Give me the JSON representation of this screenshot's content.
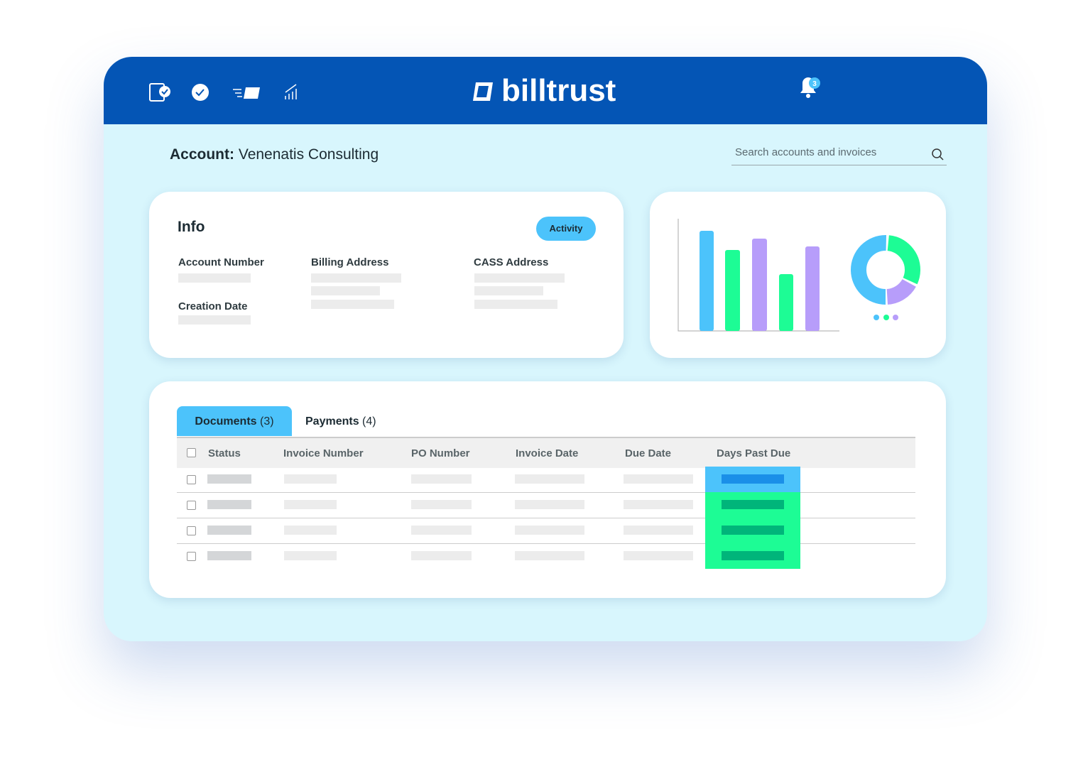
{
  "header": {
    "logo": "billtrust",
    "notification_count": "3"
  },
  "account": {
    "label": "Account:",
    "name": "Venenatis Consulting"
  },
  "search": {
    "placeholder": "Search accounts and invoices"
  },
  "info": {
    "title": "Info",
    "button": "Activity",
    "fields": [
      "Account Number",
      "Billing Address",
      "CASS Address",
      "Creation Date"
    ]
  },
  "tabs": [
    {
      "label": "Documents",
      "count": "(3)"
    },
    {
      "label": "Payments",
      "count": "(4)"
    }
  ],
  "table": {
    "columns": [
      "Status",
      "Invoice Number",
      "PO Number",
      "Invoice Date",
      "Due Date",
      "Days Past Due"
    ]
  }
}
